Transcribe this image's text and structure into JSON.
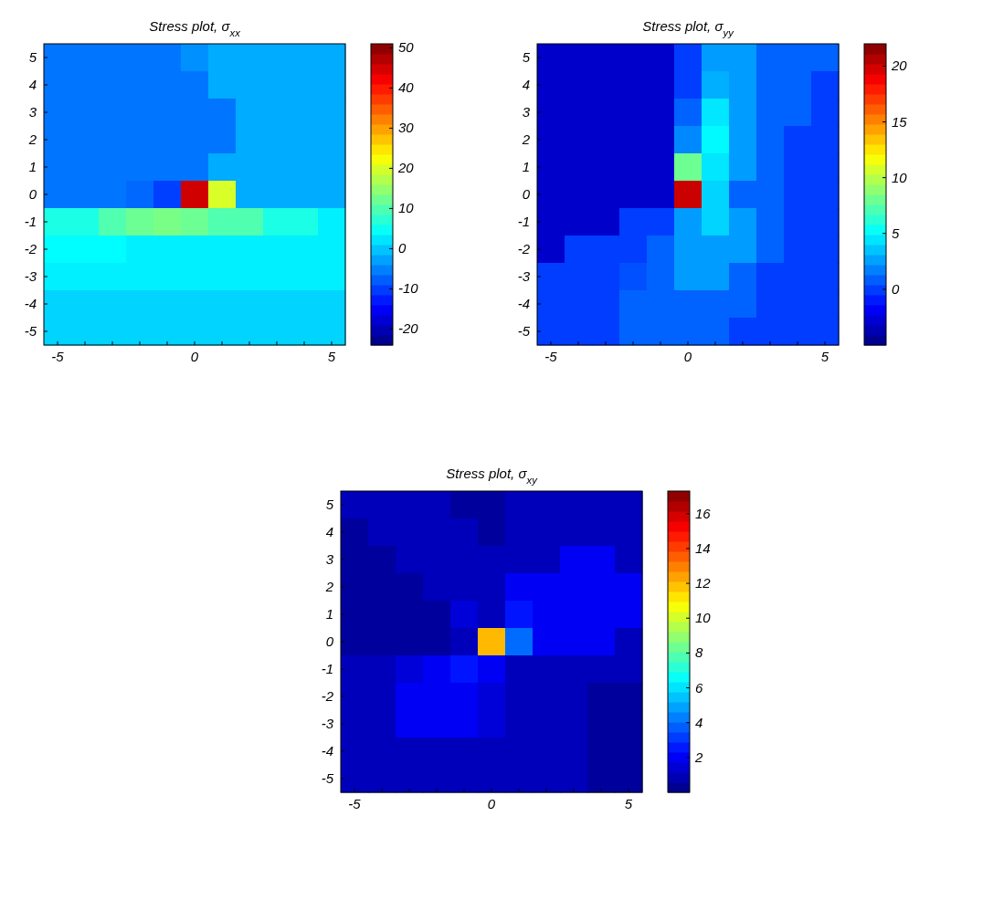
{
  "chart_data": [
    {
      "type": "heatmap",
      "title": "Stress plot, σ$_{xx}$",
      "categories": [
        "-5",
        null,
        null,
        null,
        null,
        "0",
        null,
        null,
        null,
        null,
        "5"
      ],
      "y_categories": [
        "5",
        "4",
        "3",
        "2",
        "1",
        "0",
        "-1",
        "-2",
        "-3",
        "-4",
        "-5"
      ],
      "cells": [
        [
          -6,
          -6,
          -6,
          -6,
          -6,
          -4,
          -2,
          -2,
          -2,
          -2,
          -2
        ],
        [
          -6,
          -6,
          -6,
          -6,
          -6,
          -6,
          -2,
          -2,
          -2,
          -2,
          -2
        ],
        [
          -6,
          -6,
          -6,
          -6,
          -6,
          -6,
          -6,
          -2,
          -2,
          -2,
          -2
        ],
        [
          -6,
          -6,
          -6,
          -6,
          -6,
          -6,
          -6,
          -2,
          -2,
          -2,
          -2
        ],
        [
          -6,
          -6,
          -6,
          -6,
          -6,
          -6,
          -2,
          -2,
          -2,
          -2,
          -2
        ],
        [
          -6,
          -6,
          -6,
          -7,
          -10,
          45,
          20,
          -2,
          -2,
          -2,
          -2
        ],
        [
          6,
          6,
          10,
          12,
          13,
          12,
          10,
          10,
          6,
          6,
          3
        ],
        [
          4,
          4,
          4,
          3,
          3,
          3,
          3,
          3,
          3,
          3,
          3
        ],
        [
          3,
          3,
          3,
          3,
          3,
          3,
          3,
          3,
          3,
          3,
          3
        ],
        [
          1,
          1,
          1,
          1,
          1,
          1,
          1,
          1,
          1,
          1,
          1
        ],
        [
          1,
          1,
          1,
          1,
          1,
          1,
          1,
          1,
          1,
          1,
          1
        ]
      ],
      "clim": [
        -24,
        51
      ],
      "cticks": [
        -20,
        -10,
        0,
        10,
        20,
        30,
        40,
        50
      ]
    },
    {
      "type": "heatmap",
      "title": "Stress plot, σ$_{yy}$",
      "categories": [
        "-5",
        null,
        null,
        null,
        null,
        "0",
        null,
        null,
        null,
        null,
        "5"
      ],
      "y_categories": [
        "5",
        "4",
        "3",
        "2",
        "1",
        "0",
        "-1",
        "-2",
        "-3",
        "-4",
        "-5"
      ],
      "cells": [
        [
          -3,
          -3,
          -3,
          -3,
          -3,
          0,
          2.5,
          2.5,
          1,
          1,
          1
        ],
        [
          -3,
          -3,
          -3,
          -3,
          -3,
          0,
          3,
          2.5,
          1,
          1,
          0
        ],
        [
          -3,
          -3,
          -3,
          -3,
          -3,
          1,
          4.5,
          2.5,
          1,
          1,
          0
        ],
        [
          -3,
          -3,
          -3,
          -3,
          -3,
          2,
          5,
          2.5,
          1,
          0,
          0
        ],
        [
          -3,
          -3,
          -3,
          -3,
          -3,
          8,
          4.5,
          2.5,
          1,
          0,
          0
        ],
        [
          -3,
          -3,
          -3,
          -3,
          -3,
          20,
          4,
          1,
          1,
          0,
          0
        ],
        [
          -3,
          -3,
          -3,
          0,
          0,
          2.5,
          4,
          2.5,
          1,
          0,
          0
        ],
        [
          -3,
          0,
          0,
          0,
          1,
          2.5,
          2.5,
          2.5,
          1,
          0,
          0
        ],
        [
          0,
          0,
          0,
          0.5,
          1,
          2.5,
          2.5,
          1,
          0,
          0,
          0
        ],
        [
          0,
          0,
          0,
          1,
          1,
          1,
          1,
          1,
          0,
          0,
          0
        ],
        [
          0,
          0,
          0,
          1,
          1,
          1,
          1,
          0,
          0,
          0,
          0
        ]
      ],
      "clim": [
        -5,
        22
      ],
      "cticks": [
        0,
        5,
        10,
        15,
        20
      ]
    },
    {
      "type": "heatmap",
      "title": "Stress plot, σ$_{xy}$",
      "categories": [
        "-5",
        null,
        null,
        null,
        null,
        "0",
        null,
        null,
        null,
        null,
        "5"
      ],
      "y_categories": [
        "5",
        "4",
        "3",
        "2",
        "1",
        "0",
        "-1",
        "-2",
        "-3",
        "-4",
        "-5"
      ],
      "cells": [
        [
          1,
          1,
          1,
          1,
          0.5,
          0.5,
          1,
          1,
          1,
          1,
          1
        ],
        [
          0.5,
          1,
          1,
          1,
          1,
          0.5,
          1,
          1,
          1,
          1,
          1
        ],
        [
          0.5,
          0.5,
          1,
          1,
          1,
          1,
          1,
          1,
          2,
          2,
          1
        ],
        [
          0.5,
          0.5,
          0.5,
          1,
          1,
          1,
          2,
          2,
          2,
          2,
          2
        ],
        [
          0.5,
          0.5,
          0.5,
          0.5,
          1.5,
          1,
          2.5,
          2,
          2,
          2,
          2
        ],
        [
          0.5,
          0.5,
          0.5,
          0.5,
          1,
          12,
          4,
          2,
          2,
          2,
          1
        ],
        [
          1,
          1,
          1.5,
          2,
          2.5,
          2,
          1,
          1,
          1,
          1,
          1
        ],
        [
          1,
          1,
          2,
          2,
          2,
          1.5,
          1,
          1,
          1,
          0.5,
          0.5
        ],
        [
          1,
          1,
          2,
          2,
          2,
          1.5,
          1,
          1,
          1,
          0.5,
          0.5
        ],
        [
          1,
          1,
          1,
          1,
          1,
          1,
          1,
          1,
          1,
          0.5,
          0.5
        ],
        [
          1,
          1,
          1,
          1,
          1,
          1,
          1,
          1,
          1,
          0.5,
          0.5
        ]
      ],
      "clim": [
        0,
        17.3
      ],
      "cticks": [
        2,
        4,
        6,
        8,
        10,
        12,
        14,
        16
      ]
    }
  ]
}
